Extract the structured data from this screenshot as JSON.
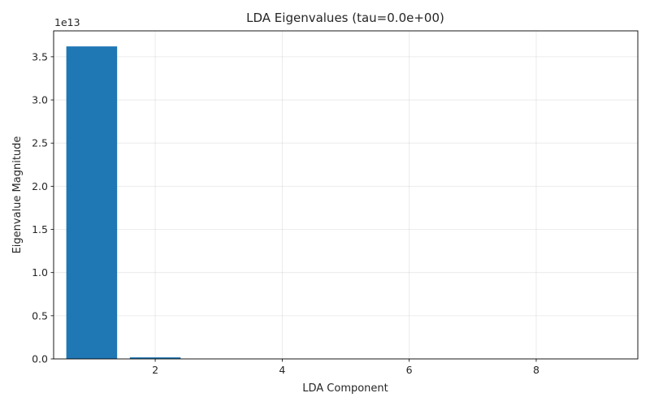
{
  "chart_data": {
    "type": "bar",
    "title": "LDA Eigenvalues (tau=0.0e+00)",
    "xlabel": "LDA Component",
    "ylabel": "Eigenvalue Magnitude",
    "x": [
      1,
      2,
      3,
      4,
      5,
      6,
      7,
      8,
      9
    ],
    "values": [
      36200000000000.0,
      180000000000.0,
      0,
      0,
      0,
      0,
      0,
      0,
      0
    ],
    "xlim": [
      0.4,
      9.6
    ],
    "ylim": [
      0,
      38000000000000.0
    ],
    "xticks": [
      "2",
      "4",
      "6",
      "8"
    ],
    "yticks": [
      "0.0",
      "0.5",
      "1.0",
      "1.5",
      "2.0",
      "2.5",
      "3.0",
      "3.5"
    ],
    "y_offset_label": "1e13",
    "bar_color": "#1f77b4",
    "grid": true
  }
}
